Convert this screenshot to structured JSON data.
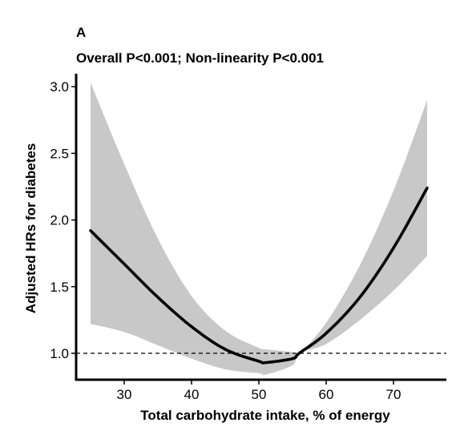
{
  "panel_label": "A",
  "chart_data": {
    "type": "line",
    "title": "Overall P<0.001; Non-linearity P<0.001",
    "xlabel": "Total carbohydrate intake, % of energy",
    "ylabel": "Adjusted HRs for diabetes",
    "xlim": [
      22,
      77
    ],
    "ylim": [
      0.8,
      3.05
    ],
    "x_ticks": [
      30,
      40,
      50,
      60,
      70
    ],
    "y_ticks": [
      1.0,
      1.5,
      2.0,
      2.5,
      3.0
    ],
    "x_tick_labels": [
      "30",
      "40",
      "50",
      "60",
      "70"
    ],
    "y_tick_labels": [
      "1.0",
      "1.5",
      "2.0",
      "2.5",
      "3.0"
    ],
    "reference_line": {
      "y": 1.0,
      "style": "dashed"
    },
    "grid": false,
    "colors": {
      "line": "#000000",
      "band": "#c8c8c8",
      "reference": "#000000"
    },
    "series": [
      {
        "x": [
          25,
          30,
          35,
          40,
          45,
          50,
          51,
          55,
          56,
          60,
          65,
          70,
          75
        ],
        "y": [
          1.92,
          1.67,
          1.42,
          1.2,
          1.03,
          0.94,
          0.93,
          0.96,
          1.0,
          1.15,
          1.42,
          1.79,
          2.24
        ],
        "ci_upper": [
          3.03,
          2.42,
          1.86,
          1.43,
          1.17,
          1.04,
          1.03,
          1.01,
          1.0,
          1.23,
          1.66,
          2.22,
          2.9
        ],
        "ci_lower": [
          1.22,
          1.16,
          1.06,
          0.96,
          0.88,
          0.85,
          0.84,
          0.91,
          1.0,
          1.07,
          1.25,
          1.47,
          1.73
        ]
      }
    ]
  }
}
